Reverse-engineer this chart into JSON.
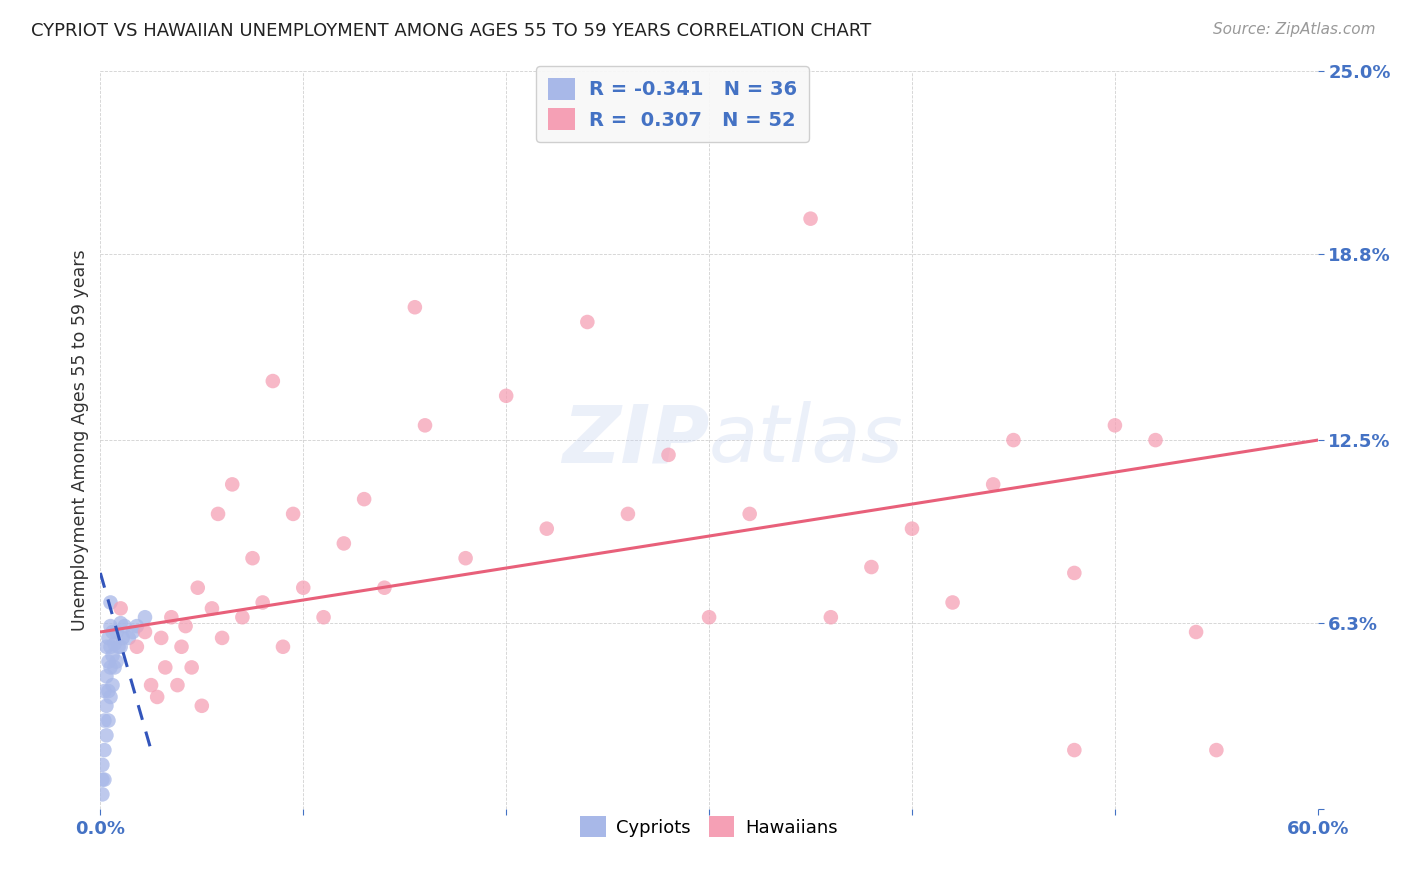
{
  "title": "CYPRIOT VS HAWAIIAN UNEMPLOYMENT AMONG AGES 55 TO 59 YEARS CORRELATION CHART",
  "source": "Source: ZipAtlas.com",
  "ylabel": "Unemployment Among Ages 55 to 59 years",
  "xmin": 0.0,
  "xmax": 0.6,
  "ymin": 0.0,
  "ymax": 0.25,
  "yticks": [
    0.0,
    0.063,
    0.125,
    0.188,
    0.25
  ],
  "ytick_labels": [
    "",
    "6.3%",
    "12.5%",
    "18.8%",
    "25.0%"
  ],
  "xticks": [
    0.0,
    0.1,
    0.2,
    0.3,
    0.4,
    0.5,
    0.6
  ],
  "xtick_labels": [
    "0.0%",
    "",
    "",
    "",
    "",
    "",
    "60.0%"
  ],
  "legend_R_cypriot": "-0.341",
  "legend_N_cypriot": "36",
  "legend_R_hawaiian": "0.307",
  "legend_N_hawaiian": "52",
  "cypriot_color": "#a8b8e8",
  "hawaiian_color": "#f5a0b5",
  "cypriot_line_color": "#3355bb",
  "hawaiian_line_color": "#e8607a",
  "tick_color": "#4472c4",
  "label_color": "#333333",
  "background_color": "#ffffff",
  "cypriot_x": [
    0.001,
    0.001,
    0.001,
    0.002,
    0.002,
    0.002,
    0.002,
    0.003,
    0.003,
    0.003,
    0.003,
    0.004,
    0.004,
    0.004,
    0.004,
    0.005,
    0.005,
    0.005,
    0.005,
    0.005,
    0.006,
    0.006,
    0.006,
    0.007,
    0.007,
    0.008,
    0.008,
    0.009,
    0.01,
    0.01,
    0.011,
    0.012,
    0.014,
    0.016,
    0.018,
    0.022
  ],
  "cypriot_y": [
    0.005,
    0.01,
    0.015,
    0.01,
    0.02,
    0.03,
    0.04,
    0.025,
    0.035,
    0.045,
    0.055,
    0.03,
    0.04,
    0.05,
    0.058,
    0.038,
    0.048,
    0.055,
    0.062,
    0.07,
    0.042,
    0.052,
    0.06,
    0.048,
    0.056,
    0.05,
    0.06,
    0.055,
    0.055,
    0.063,
    0.058,
    0.062,
    0.058,
    0.06,
    0.062,
    0.065
  ],
  "hawaiian_x": [
    0.01,
    0.018,
    0.022,
    0.025,
    0.028,
    0.03,
    0.032,
    0.035,
    0.038,
    0.04,
    0.042,
    0.045,
    0.048,
    0.05,
    0.055,
    0.058,
    0.06,
    0.065,
    0.07,
    0.075,
    0.08,
    0.085,
    0.09,
    0.095,
    0.1,
    0.11,
    0.12,
    0.13,
    0.14,
    0.155,
    0.16,
    0.18,
    0.2,
    0.22,
    0.24,
    0.26,
    0.28,
    0.3,
    0.32,
    0.35,
    0.38,
    0.4,
    0.42,
    0.45,
    0.48,
    0.5,
    0.52,
    0.54,
    0.36,
    0.44,
    0.48,
    0.55
  ],
  "hawaiian_y": [
    0.068,
    0.055,
    0.06,
    0.042,
    0.038,
    0.058,
    0.048,
    0.065,
    0.042,
    0.055,
    0.062,
    0.048,
    0.075,
    0.035,
    0.068,
    0.1,
    0.058,
    0.11,
    0.065,
    0.085,
    0.07,
    0.145,
    0.055,
    0.1,
    0.075,
    0.065,
    0.09,
    0.105,
    0.075,
    0.17,
    0.13,
    0.085,
    0.14,
    0.095,
    0.165,
    0.1,
    0.12,
    0.065,
    0.1,
    0.2,
    0.082,
    0.095,
    0.07,
    0.125,
    0.08,
    0.13,
    0.125,
    0.06,
    0.065,
    0.11,
    0.02,
    0.02
  ],
  "haw_trend_x0": 0.0,
  "haw_trend_y0": 0.06,
  "haw_trend_x1": 0.6,
  "haw_trend_y1": 0.125,
  "cyp_trend_x0": 0.0,
  "cyp_trend_y0": 0.08,
  "cyp_trend_x1": 0.025,
  "cyp_trend_y1": 0.02
}
